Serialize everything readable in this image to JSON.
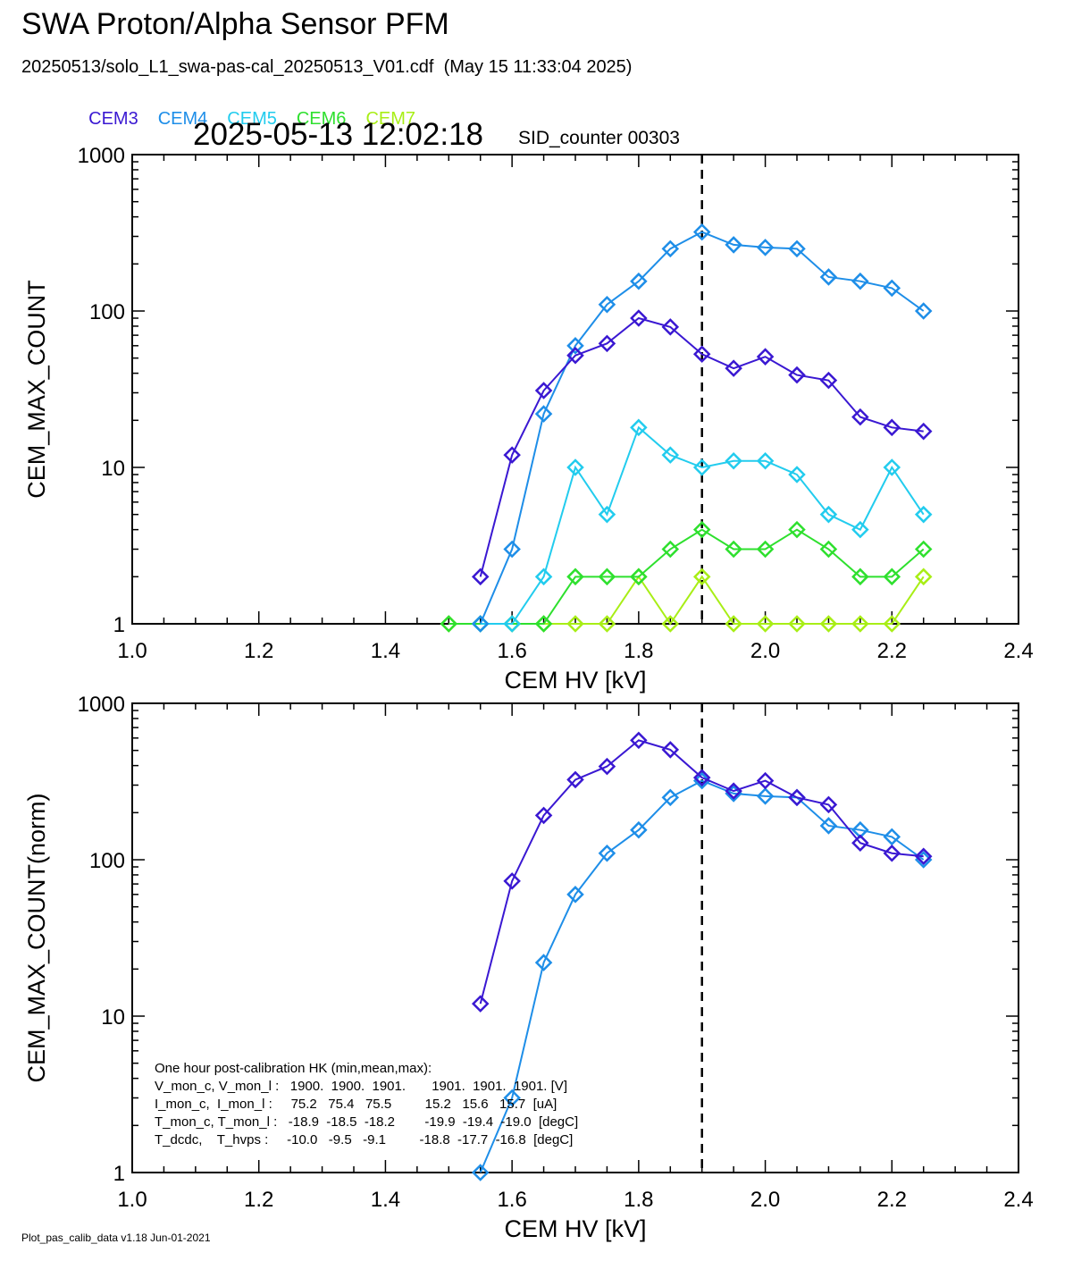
{
  "header": {
    "title": "SWA Proton/Alpha Sensor PFM",
    "file_line": "20250513/solo_L1_swa-pas-cal_20250513_V01.cdf  (May 15 11:33:04 2025)",
    "timestamp": "2025-05-13 12:02:18",
    "sid_counter": "SID_counter 00303"
  },
  "footer": "Plot_pas_calib_data v1.18 Jun-01-2021",
  "colors": {
    "CEM3": "#3a18d2",
    "CEM4": "#1e8ee8",
    "CEM5": "#22ccee",
    "CEM6": "#2ee02e",
    "CEM7": "#a8ee16"
  },
  "chart_data": [
    {
      "type": "line",
      "marker": "diamond",
      "xlabel": "CEM HV [kV]",
      "ylabel": "CEM_MAX_COUNT",
      "yscale": "log",
      "xlim": [
        1.0,
        2.4
      ],
      "ylim": [
        1,
        1000
      ],
      "xticks": [
        "1.0",
        "1.2",
        "1.4",
        "1.6",
        "1.8",
        "2.0",
        "2.2",
        "2.4"
      ],
      "yticks": [
        "1",
        "10",
        "100",
        "1000"
      ],
      "vline_x": 1.9,
      "legend": [
        "CEM3",
        "CEM4",
        "CEM5",
        "CEM6",
        "CEM7"
      ],
      "series": [
        {
          "name": "CEM3",
          "x": [
            1.55,
            1.6,
            1.65,
            1.7,
            1.75,
            1.8,
            1.85,
            1.9,
            1.95,
            2.0,
            2.05,
            2.1,
            2.15,
            2.2,
            2.25
          ],
          "y": [
            2,
            12,
            31,
            52,
            62,
            90,
            79,
            53,
            43,
            51,
            39,
            36,
            21,
            18,
            17
          ]
        },
        {
          "name": "CEM4",
          "x": [
            1.55,
            1.6,
            1.65,
            1.7,
            1.75,
            1.8,
            1.85,
            1.9,
            1.95,
            2.0,
            2.05,
            2.1,
            2.15,
            2.2,
            2.25
          ],
          "y": [
            1,
            3,
            22,
            60,
            110,
            155,
            250,
            320,
            265,
            255,
            250,
            165,
            155,
            140,
            100
          ]
        },
        {
          "name": "CEM5",
          "x": [
            1.55,
            1.6,
            1.65,
            1.7,
            1.75,
            1.8,
            1.85,
            1.9,
            1.95,
            2.0,
            2.05,
            2.1,
            2.15,
            2.2,
            2.25
          ],
          "y": [
            1,
            1,
            2,
            10,
            5,
            18,
            12,
            10,
            11,
            11,
            9,
            5,
            4,
            10,
            5
          ]
        },
        {
          "name": "CEM6",
          "x": [
            1.5,
            1.55,
            1.6,
            1.65,
            1.7,
            1.75,
            1.8,
            1.85,
            1.9,
            1.95,
            2.0,
            2.05,
            2.1,
            2.15,
            2.2,
            2.25
          ],
          "y": [
            1,
            1,
            1,
            1,
            2,
            2,
            2,
            3,
            4,
            3,
            3,
            4,
            3,
            2,
            2,
            3
          ]
        },
        {
          "name": "CEM7",
          "x": [
            1.5,
            1.55,
            1.6,
            1.65,
            1.7,
            1.75,
            1.8,
            1.85,
            1.9,
            1.95,
            2.0,
            2.05,
            2.1,
            2.15,
            2.2,
            2.25
          ],
          "y": [
            1,
            1,
            1,
            1,
            1,
            1,
            2,
            1,
            2,
            1,
            1,
            1,
            1,
            1,
            1,
            2
          ]
        }
      ]
    },
    {
      "type": "line",
      "marker": "diamond",
      "xlabel": "CEM HV [kV]",
      "ylabel": "CEM_MAX_COUNT(norm)",
      "yscale": "log",
      "xlim": [
        1.0,
        2.4
      ],
      "ylim": [
        1,
        1000
      ],
      "xticks": [
        "1.0",
        "1.2",
        "1.4",
        "1.6",
        "1.8",
        "2.0",
        "2.2",
        "2.4"
      ],
      "yticks": [
        "1",
        "10",
        "100",
        "1000"
      ],
      "vline_x": 1.9,
      "series": [
        {
          "name": "CEM3",
          "x": [
            1.55,
            1.6,
            1.65,
            1.7,
            1.75,
            1.8,
            1.85,
            1.9,
            1.95,
            2.0,
            2.05,
            2.1,
            2.15,
            2.2,
            2.25
          ],
          "y": [
            12,
            73,
            192,
            325,
            395,
            580,
            505,
            335,
            275,
            320,
            250,
            225,
            128,
            110,
            105
          ]
        },
        {
          "name": "CEM4",
          "x": [
            1.55,
            1.6,
            1.65,
            1.7,
            1.75,
            1.8,
            1.85,
            1.9,
            1.95,
            2.0,
            2.05,
            2.1,
            2.15,
            2.2,
            2.25
          ],
          "y": [
            1,
            3,
            22,
            60,
            110,
            155,
            250,
            320,
            265,
            255,
            250,
            165,
            155,
            140,
            100
          ]
        }
      ],
      "annotation": {
        "title": "One hour post-calibration HK (min,mean,max):",
        "lines": [
          "V_mon_c, V_mon_l :   1900.  1900.  1901.       1901.  1901.  1901. [V]",
          "I_mon_c,  I_mon_l :     75.2   75.4   75.5         15.2   15.6   15.7  [uA]",
          "T_mon_c, T_mon_l :   -18.9  -18.5  -18.2        -19.9  -19.4  -19.0  [degC]",
          "T_dcdc,    T_hvps :     -10.0   -9.5   -9.1         -18.8  -17.7  -16.8  [degC]"
        ]
      }
    }
  ]
}
